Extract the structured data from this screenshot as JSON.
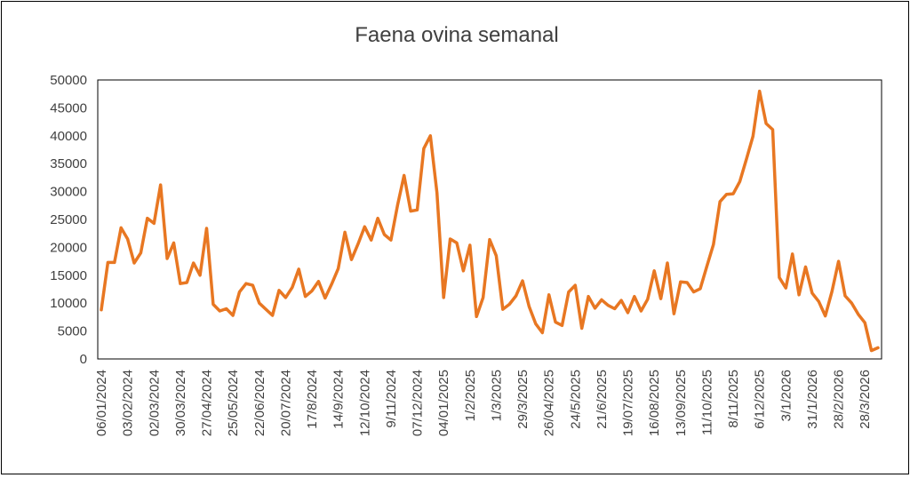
{
  "chart_data": {
    "type": "line",
    "title": "Faena ovina semanal",
    "xlabel": "",
    "ylabel": "",
    "ylim": [
      0,
      50000
    ],
    "yticks": [
      0,
      5000,
      10000,
      15000,
      20000,
      25000,
      30000,
      35000,
      40000,
      45000,
      50000
    ],
    "xtick_labels": [
      "06/01/2024",
      "03/02/2024",
      "02/03/2024",
      "30/03/2024",
      "27/04/2024",
      "25/05/2024",
      "22/06/2024",
      "20/07/2024",
      "17/8/2024",
      "14/9/2024",
      "12/10/2024",
      "9/11/2024",
      "07/12/2024",
      "04/01/2025",
      "1/2/2025",
      "1/3/2025",
      "29/3/2025",
      "26/04/2025",
      "24/5/2025",
      "21/6/2025",
      "19/07/2025",
      "16/08/2025",
      "13/09/2025",
      "11/10/2025",
      "8/11/2025",
      "6/12/2025",
      "3/1/2026",
      "31/1/2026",
      "28/2/2026",
      "28/3/2026"
    ],
    "grid": false,
    "legend": "none",
    "colors": {
      "line": "#E87722",
      "axis": "#000000",
      "text": "#404040"
    },
    "series": [
      {
        "values": [
          8800,
          17300,
          17300,
          23500,
          21500,
          17200,
          19000,
          25200,
          24300,
          31200,
          18000,
          20800,
          13500,
          13700,
          17200,
          15000,
          23400,
          9800,
          8600,
          9000,
          7800,
          12000,
          13500,
          13200,
          10000,
          8900,
          7800,
          12300,
          11000,
          12800,
          16100,
          11200,
          12200,
          13900,
          10900,
          13400,
          16200,
          22700,
          17800,
          20600,
          23700,
          21300,
          25200,
          22300,
          21300,
          27500,
          32900,
          26500,
          26700,
          37700,
          40000,
          29800,
          11000,
          21500,
          20800,
          15800,
          20400,
          7600,
          11000,
          21400,
          18500,
          8900,
          9800,
          11300,
          14000,
          9400,
          6300,
          4700,
          11500,
          6600,
          6000,
          12000,
          13200,
          5500,
          11200,
          9100,
          10600,
          9600,
          9000,
          10500,
          8300,
          11200,
          8600,
          10700,
          15800,
          10800,
          17200,
          8100,
          13800,
          13700,
          12000,
          12600,
          16600,
          20500,
          28200,
          29500,
          29600,
          31800,
          35800,
          39900,
          48000,
          42200,
          41100,
          14600,
          12700,
          18800,
          11500,
          16500,
          11800,
          10300,
          7700,
          12100,
          17500,
          11300,
          10000,
          8000,
          6500,
          1500,
          2000
        ]
      }
    ]
  }
}
